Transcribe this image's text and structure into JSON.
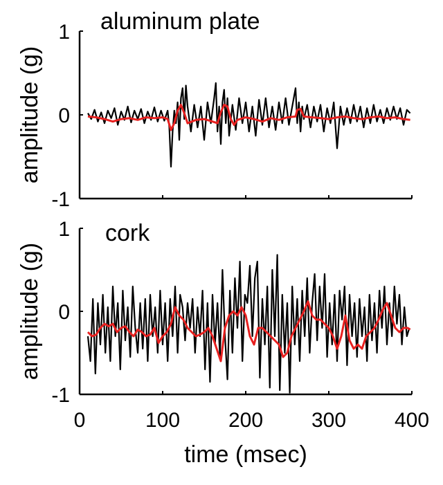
{
  "chart_data": [
    {
      "type": "line",
      "title": "aluminum plate",
      "xlabel": "",
      "ylabel": "amplitude (g)",
      "xlim": [
        0,
        400
      ],
      "ylim": [
        -1,
        1
      ],
      "yticks": [
        -1,
        0,
        1
      ],
      "ytick_labels": [
        "-1",
        "0",
        "1"
      ],
      "xticks": [
        0,
        100,
        200,
        300,
        400
      ],
      "xtick_labels": [],
      "series": [
        {
          "color": "#000000",
          "x": [
            10,
            14,
            18,
            22,
            26,
            30,
            34,
            38,
            42,
            46,
            50,
            54,
            58,
            62,
            66,
            70,
            74,
            78,
            82,
            86,
            90,
            94,
            98,
            102,
            106,
            108,
            110,
            112,
            114,
            116,
            118,
            120,
            122,
            124,
            126,
            128,
            130,
            134,
            138,
            142,
            146,
            150,
            154,
            158,
            162,
            164,
            166,
            168,
            170,
            172,
            174,
            176,
            178,
            180,
            184,
            188,
            192,
            196,
            200,
            204,
            208,
            212,
            216,
            220,
            224,
            228,
            232,
            236,
            240,
            244,
            248,
            252,
            256,
            260,
            262,
            264,
            266,
            268,
            270,
            274,
            278,
            282,
            286,
            290,
            294,
            298,
            302,
            306,
            310,
            314,
            318,
            322,
            326,
            330,
            334,
            338,
            342,
            346,
            350,
            354,
            358,
            362,
            366,
            370,
            374,
            378,
            382,
            386,
            390,
            394,
            398
          ],
          "values": [
            0.02,
            -0.05,
            0.06,
            -0.08,
            0.03,
            -0.1,
            0.05,
            -0.04,
            0.08,
            -0.12,
            0.04,
            -0.06,
            0.1,
            -0.09,
            0.05,
            -0.05,
            0.07,
            -0.1,
            0.04,
            -0.06,
            0.09,
            -0.08,
            0.05,
            -0.07,
            0.05,
            -0.15,
            -0.62,
            -0.2,
            0.05,
            -0.1,
            0.15,
            -0.3,
            0.2,
            0.32,
            -0.05,
            0.35,
            0.1,
            -0.2,
            0.12,
            -0.15,
            0.1,
            -0.3,
            0.15,
            -0.1,
            0.2,
            0.38,
            -0.2,
            0.1,
            -0.35,
            0.15,
            0.3,
            -0.1,
            0.2,
            -0.25,
            0.12,
            -0.18,
            0.2,
            -0.1,
            0.15,
            -0.2,
            0.1,
            -0.25,
            0.18,
            -0.12,
            0.2,
            -0.15,
            0.1,
            -0.18,
            0.15,
            -0.1,
            0.2,
            -0.12,
            0.1,
            0.32,
            -0.1,
            0.15,
            -0.2,
            0.1,
            -0.05,
            0.12,
            -0.15,
            0.1,
            -0.08,
            0.12,
            -0.2,
            0.08,
            -0.1,
            0.15,
            -0.4,
            0.1,
            -0.12,
            0.08,
            -0.1,
            0.12,
            -0.08,
            0.1,
            -0.15,
            0.08,
            -0.1,
            0.12,
            -0.08,
            0.06,
            -0.1,
            0.08,
            -0.06,
            0.1,
            -0.05,
            0.08,
            -0.12,
            0.06,
            0.02
          ]
        },
        {
          "color": "#e8201f",
          "x": [
            10,
            20,
            30,
            40,
            50,
            60,
            70,
            80,
            90,
            100,
            106,
            110,
            114,
            118,
            122,
            126,
            130,
            140,
            150,
            160,
            166,
            170,
            174,
            178,
            182,
            186,
            190,
            200,
            210,
            220,
            230,
            240,
            250,
            260,
            262,
            266,
            270,
            280,
            290,
            300,
            310,
            320,
            330,
            340,
            350,
            360,
            370,
            380,
            390,
            398
          ],
          "values": [
            -0.02,
            -0.03,
            -0.05,
            -0.08,
            -0.05,
            -0.04,
            -0.06,
            -0.03,
            -0.04,
            -0.03,
            -0.05,
            -0.18,
            -0.1,
            0.05,
            0.12,
            0.02,
            -0.1,
            -0.06,
            -0.05,
            -0.08,
            -0.1,
            0.03,
            0.12,
            0.1,
            -0.05,
            -0.12,
            -0.06,
            -0.03,
            -0.05,
            -0.08,
            -0.04,
            -0.06,
            -0.03,
            -0.02,
            0.06,
            0.07,
            -0.02,
            -0.03,
            -0.04,
            -0.05,
            -0.03,
            -0.02,
            -0.04,
            -0.05,
            -0.03,
            -0.02,
            -0.04,
            -0.03,
            -0.05,
            -0.06
          ]
        }
      ]
    },
    {
      "type": "line",
      "title": "cork",
      "xlabel": "time (msec)",
      "ylabel": "amplitude (g)",
      "xlim": [
        0,
        400
      ],
      "ylim": [
        -1,
        1
      ],
      "yticks": [
        -1,
        0,
        1
      ],
      "ytick_labels": [
        "-1",
        "0",
        "1"
      ],
      "xticks": [
        0,
        100,
        200,
        300,
        400
      ],
      "xtick_labels": [
        "0",
        "100",
        "200",
        "300",
        "400"
      ],
      "series": [
        {
          "color": "#000000",
          "x": [
            10,
            13,
            16,
            19,
            22,
            25,
            28,
            31,
            34,
            37,
            40,
            43,
            46,
            49,
            52,
            55,
            58,
            61,
            64,
            67,
            70,
            73,
            76,
            79,
            82,
            85,
            88,
            91,
            94,
            97,
            100,
            103,
            106,
            109,
            112,
            115,
            118,
            121,
            124,
            127,
            130,
            133,
            136,
            139,
            142,
            145,
            148,
            151,
            154,
            157,
            160,
            163,
            166,
            169,
            172,
            175,
            178,
            181,
            184,
            187,
            190,
            193,
            196,
            199,
            202,
            205,
            208,
            211,
            214,
            217,
            220,
            223,
            226,
            229,
            232,
            235,
            238,
            241,
            244,
            247,
            250,
            253,
            256,
            259,
            262,
            265,
            268,
            271,
            274,
            277,
            280,
            283,
            286,
            289,
            292,
            295,
            298,
            301,
            304,
            307,
            310,
            313,
            316,
            319,
            322,
            325,
            328,
            331,
            334,
            337,
            340,
            343,
            346,
            349,
            352,
            355,
            358,
            361,
            364,
            367,
            370,
            373,
            376,
            379,
            382,
            385,
            388,
            391,
            394,
            397
          ],
          "values": [
            -0.3,
            -0.6,
            0.15,
            -0.75,
            0.1,
            -0.4,
            0.2,
            -0.5,
            0.05,
            -0.6,
            0.3,
            -0.3,
            0.1,
            -0.7,
            0.25,
            -0.35,
            0.05,
            -0.55,
            0.3,
            -0.2,
            -0.5,
            0.1,
            -0.45,
            0.15,
            -0.6,
            0.2,
            -0.3,
            0.05,
            -0.5,
            0.25,
            -0.4,
            0.1,
            -0.6,
            0.15,
            -0.3,
            0.3,
            -0.5,
            0.2,
            0.05,
            -0.35,
            0.1,
            -0.2,
            0.15,
            -0.5,
            0.05,
            -0.3,
            0.25,
            -0.7,
            0.1,
            -0.85,
            0.2,
            -0.4,
            0.1,
            -0.55,
            0.5,
            -0.3,
            -0.82,
            0.25,
            -0.5,
            0.4,
            -0.2,
            0.6,
            -0.6,
            0.2,
            0.1,
            0.55,
            -0.3,
            0.4,
            0.6,
            -0.8,
            0.15,
            -0.4,
            0.3,
            -0.92,
            0.5,
            -0.3,
            0.68,
            -0.95,
            0.2,
            -0.5,
            0.1,
            -0.98,
            0.3,
            -0.4,
            0.15,
            -0.6,
            0.25,
            -0.3,
            0.4,
            -0.5,
            0.1,
            0.45,
            -0.35,
            0.3,
            -0.2,
            0.45,
            -0.55,
            0.1,
            -0.4,
            0.2,
            -0.6,
            0.25,
            -0.1,
            0.3,
            -0.65,
            0.2,
            -0.3,
            0.1,
            -0.55,
            0.15,
            -0.3,
            0.05,
            -0.6,
            0.2,
            -0.35,
            0.1,
            -0.5,
            0.25,
            -0.2,
            0.3,
            -0.4,
            0.1,
            -0.3,
            0.3,
            -0.15,
            0.2,
            -0.4,
            0.05,
            -0.3,
            -0.2
          ]
        },
        {
          "color": "#e8201f",
          "x": [
            10,
            15,
            20,
            25,
            30,
            35,
            40,
            45,
            50,
            55,
            60,
            65,
            70,
            75,
            80,
            85,
            90,
            95,
            100,
            105,
            110,
            115,
            120,
            125,
            130,
            135,
            140,
            145,
            150,
            155,
            160,
            165,
            170,
            175,
            180,
            185,
            190,
            195,
            200,
            205,
            210,
            215,
            220,
            225,
            230,
            235,
            240,
            245,
            250,
            255,
            260,
            265,
            270,
            275,
            280,
            285,
            290,
            295,
            300,
            305,
            310,
            315,
            320,
            325,
            330,
            335,
            340,
            345,
            350,
            355,
            360,
            365,
            370,
            375,
            380,
            385,
            390,
            395,
            398
          ],
          "values": [
            -0.25,
            -0.3,
            -0.28,
            -0.2,
            -0.15,
            -0.18,
            -0.15,
            -0.25,
            -0.2,
            -0.18,
            -0.25,
            -0.3,
            -0.22,
            -0.25,
            -0.3,
            -0.28,
            -0.2,
            -0.38,
            -0.3,
            -0.25,
            -0.15,
            0.05,
            -0.05,
            -0.1,
            -0.2,
            -0.25,
            -0.3,
            -0.28,
            -0.25,
            -0.2,
            -0.3,
            -0.45,
            -0.6,
            -0.2,
            -0.05,
            0.0,
            -0.05,
            0.05,
            -0.05,
            -0.3,
            -0.4,
            -0.2,
            -0.2,
            -0.25,
            -0.3,
            -0.35,
            -0.4,
            -0.55,
            -0.5,
            -0.3,
            -0.2,
            -0.1,
            0.0,
            0.12,
            -0.05,
            -0.1,
            -0.1,
            -0.15,
            -0.2,
            -0.3,
            -0.45,
            -0.3,
            -0.05,
            -0.35,
            -0.45,
            -0.4,
            -0.45,
            -0.3,
            -0.25,
            -0.2,
            -0.1,
            0.02,
            0.1,
            -0.05,
            -0.2,
            -0.25,
            -0.2,
            -0.2,
            -0.22
          ]
        }
      ]
    }
  ]
}
